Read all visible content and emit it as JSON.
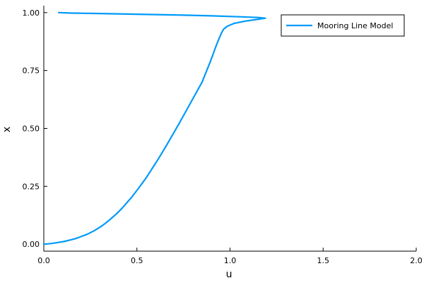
{
  "colors": {
    "series": "#009AFA",
    "axis": "#000000",
    "background": "#FFFFFF"
  },
  "chart_data": {
    "type": "line",
    "xlabel": "u",
    "ylabel": "x",
    "xlim": [
      0,
      2
    ],
    "ylim": [
      -0.03,
      1.03
    ],
    "xticks": [
      0.0,
      0.5,
      1.0,
      1.5,
      2.0
    ],
    "xtick_labels": [
      "0.0",
      "0.5",
      "1.0",
      "1.5",
      "2.0"
    ],
    "yticks": [
      0.0,
      0.25,
      0.5,
      0.75,
      1.0
    ],
    "ytick_labels": [
      "0.00",
      "0.25",
      "0.50",
      "0.75",
      "1.00"
    ],
    "grid": false,
    "legend_position": "top-right",
    "series": [
      {
        "name": "Mooring Line Model",
        "color": "#009AFA",
        "points": [
          [
            0.0,
            0.0
          ],
          [
            0.04,
            0.003
          ],
          [
            0.08,
            0.008
          ],
          [
            0.11,
            0.012
          ],
          [
            0.14,
            0.018
          ],
          [
            0.17,
            0.024
          ],
          [
            0.19,
            0.03
          ],
          [
            0.21,
            0.036
          ],
          [
            0.23,
            0.042
          ],
          [
            0.25,
            0.05
          ],
          [
            0.27,
            0.058
          ],
          [
            0.29,
            0.068
          ],
          [
            0.31,
            0.078
          ],
          [
            0.33,
            0.09
          ],
          [
            0.35,
            0.103
          ],
          [
            0.37,
            0.117
          ],
          [
            0.39,
            0.131
          ],
          [
            0.41,
            0.147
          ],
          [
            0.43,
            0.164
          ],
          [
            0.45,
            0.183
          ],
          [
            0.47,
            0.201
          ],
          [
            0.49,
            0.222
          ],
          [
            0.51,
            0.243
          ],
          [
            0.53,
            0.265
          ],
          [
            0.55,
            0.287
          ],
          [
            0.57,
            0.312
          ],
          [
            0.59,
            0.337
          ],
          [
            0.61,
            0.362
          ],
          [
            0.63,
            0.388
          ],
          [
            0.65,
            0.415
          ],
          [
            0.67,
            0.442
          ],
          [
            0.69,
            0.47
          ],
          [
            0.71,
            0.498
          ],
          [
            0.73,
            0.526
          ],
          [
            0.75,
            0.555
          ],
          [
            0.77,
            0.584
          ],
          [
            0.79,
            0.613
          ],
          [
            0.81,
            0.642
          ],
          [
            0.83,
            0.671
          ],
          [
            0.85,
            0.7
          ],
          [
            0.865,
            0.73
          ],
          [
            0.88,
            0.76
          ],
          [
            0.895,
            0.79
          ],
          [
            0.908,
            0.818
          ],
          [
            0.92,
            0.845
          ],
          [
            0.932,
            0.87
          ],
          [
            0.944,
            0.893
          ],
          [
            0.954,
            0.912
          ],
          [
            0.965,
            0.928
          ],
          [
            0.985,
            0.941
          ],
          [
            1.02,
            0.953
          ],
          [
            1.08,
            0.963
          ],
          [
            1.14,
            0.97
          ],
          [
            1.19,
            0.976
          ],
          [
            1.15,
            0.979
          ],
          [
            1.05,
            0.982
          ],
          [
            0.9,
            0.986
          ],
          [
            0.7,
            0.99
          ],
          [
            0.5,
            0.993
          ],
          [
            0.3,
            0.996
          ],
          [
            0.15,
            0.998
          ],
          [
            0.08,
            1.0
          ]
        ]
      }
    ]
  }
}
